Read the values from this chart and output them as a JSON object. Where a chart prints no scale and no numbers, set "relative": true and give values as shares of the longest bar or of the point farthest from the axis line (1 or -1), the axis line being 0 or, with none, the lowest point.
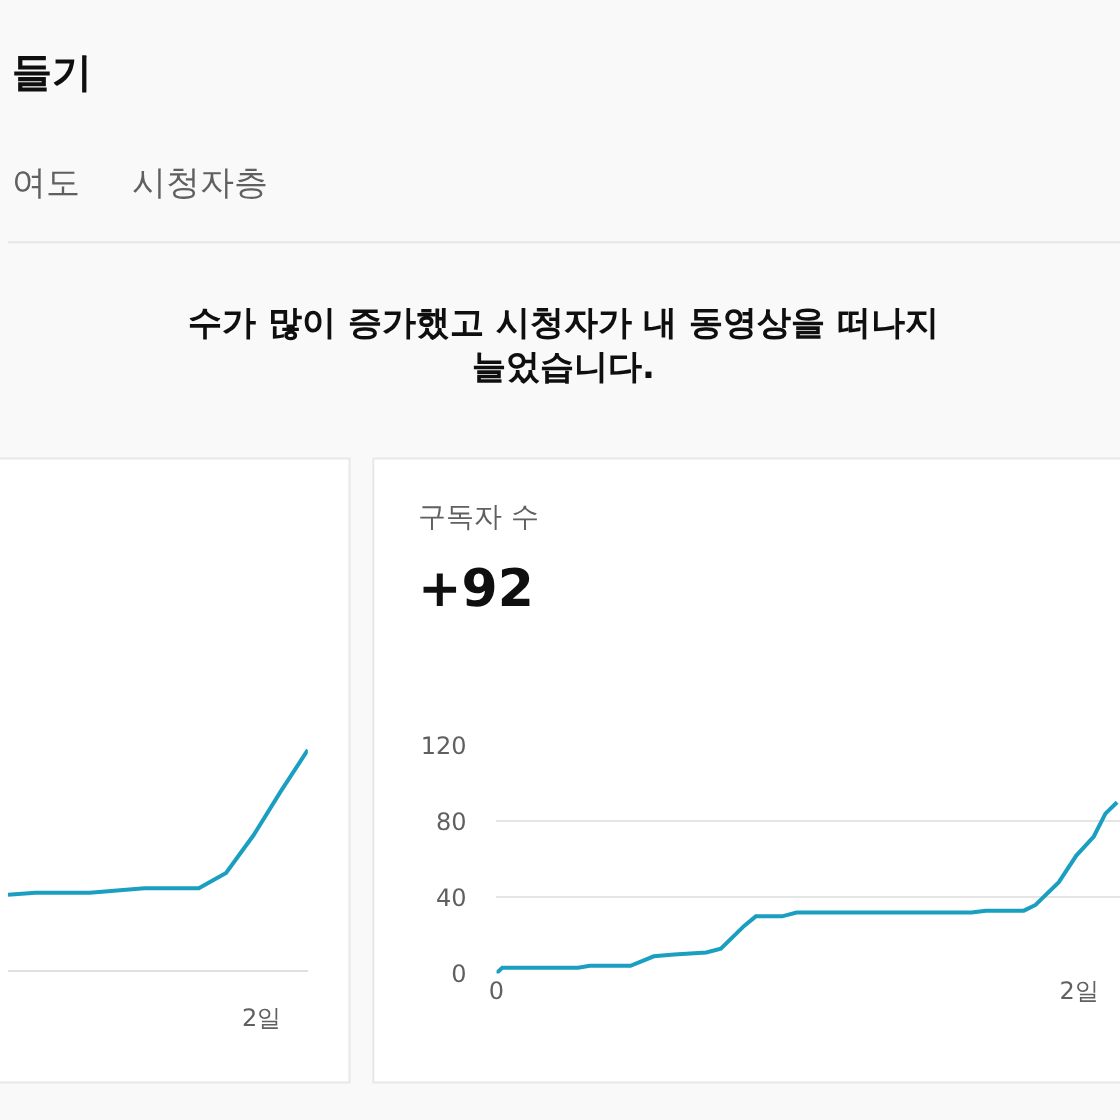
{
  "chart_data": [
    {
      "type": "other",
      "title": "들기",
      "annotations": [
        "여도",
        "시청자층",
        "수가 많이 증가했고 시청자가 내 동영상을 떠나지\n늘었습니다."
      ]
    },
    {
      "type": "line",
      "relative": true,
      "categories": [
        null,
        null,
        null,
        null,
        null,
        null,
        null,
        null,
        null,
        null,
        null,
        null
      ],
      "annotations": [
        "2일"
      ],
      "series": [
        {
          "color": "#1a9fc1",
          "values": [
            0.34,
            0.35,
            0.35,
            0.35,
            0.36,
            0.37,
            0.37,
            0.37,
            0.44,
            0.61,
            0.81,
            1.0
          ]
        }
      ]
    },
    {
      "type": "line",
      "title": "구독자 수",
      "subtitle": "+92",
      "grid": "y",
      "x": [
        0,
        0.02,
        0.28,
        0.32,
        0.46,
        0.54,
        0.61,
        0.72,
        0.77,
        0.85,
        0.89,
        0.98,
        1.03,
        1.63,
        1.68,
        1.81,
        1.85,
        1.93,
        1.99,
        2.05,
        2.09,
        2.13
      ],
      "xlim": [
        0,
        2.14
      ],
      "xticks": [
        {
          "value": 0,
          "label": "0"
        },
        {
          "value": 2,
          "label": "2일"
        }
      ],
      "ylim": [
        0,
        120
      ],
      "yticks": [
        0,
        40,
        80,
        120
      ],
      "series": [
        {
          "color": "#1a9fc1",
          "values": [
            0,
            3,
            3,
            4,
            4,
            9,
            10,
            11,
            13,
            25,
            30,
            30,
            32,
            32,
            33,
            33,
            36,
            48,
            62,
            72,
            84,
            90
          ]
        }
      ]
    }
  ]
}
